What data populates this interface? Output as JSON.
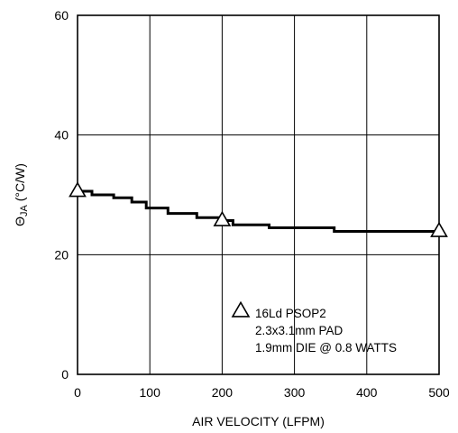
{
  "chart_data": {
    "type": "line",
    "xlabel": "AIR VELOCITY (LFPM)",
    "ylabel": {
      "prefix": "Θ",
      "subscript": "JA",
      "suffix": " (°C/W)"
    },
    "xlim": [
      0,
      500
    ],
    "ylim": [
      0,
      60
    ],
    "x_ticks": [
      "0",
      "100",
      "200",
      "300",
      "400",
      "500"
    ],
    "y_ticks": [
      "0",
      "20",
      "40",
      "60"
    ],
    "grid": true,
    "series": [
      {
        "name": "16Ld PSOP2",
        "marker": "open-triangle",
        "color": "#000000",
        "step_line": [
          [
            0,
            30.6
          ],
          [
            20,
            30.6
          ],
          [
            20,
            30.0
          ],
          [
            50,
            30.0
          ],
          [
            50,
            29.5
          ],
          [
            75,
            29.5
          ],
          [
            75,
            28.8
          ],
          [
            95,
            28.8
          ],
          [
            95,
            27.8
          ],
          [
            125,
            27.8
          ],
          [
            125,
            26.9
          ],
          [
            165,
            26.9
          ],
          [
            165,
            26.2
          ],
          [
            200,
            26.2
          ],
          [
            200,
            25.7
          ],
          [
            215,
            25.7
          ],
          [
            215,
            25.0
          ],
          [
            265,
            25.0
          ],
          [
            265,
            24.5
          ],
          [
            355,
            24.5
          ],
          [
            355,
            23.9
          ],
          [
            500,
            23.9
          ]
        ],
        "marker_points": [
          {
            "x": 0,
            "y": 30.6
          },
          {
            "x": 200,
            "y": 25.7
          },
          {
            "x": 500,
            "y": 23.9
          }
        ]
      }
    ],
    "legend": {
      "placement": "bottom-right",
      "lines": [
        "16Ld PSOP2",
        "2.3x3.1mm PAD",
        "1.9mm DIE @ 0.8 WATTS"
      ]
    }
  }
}
